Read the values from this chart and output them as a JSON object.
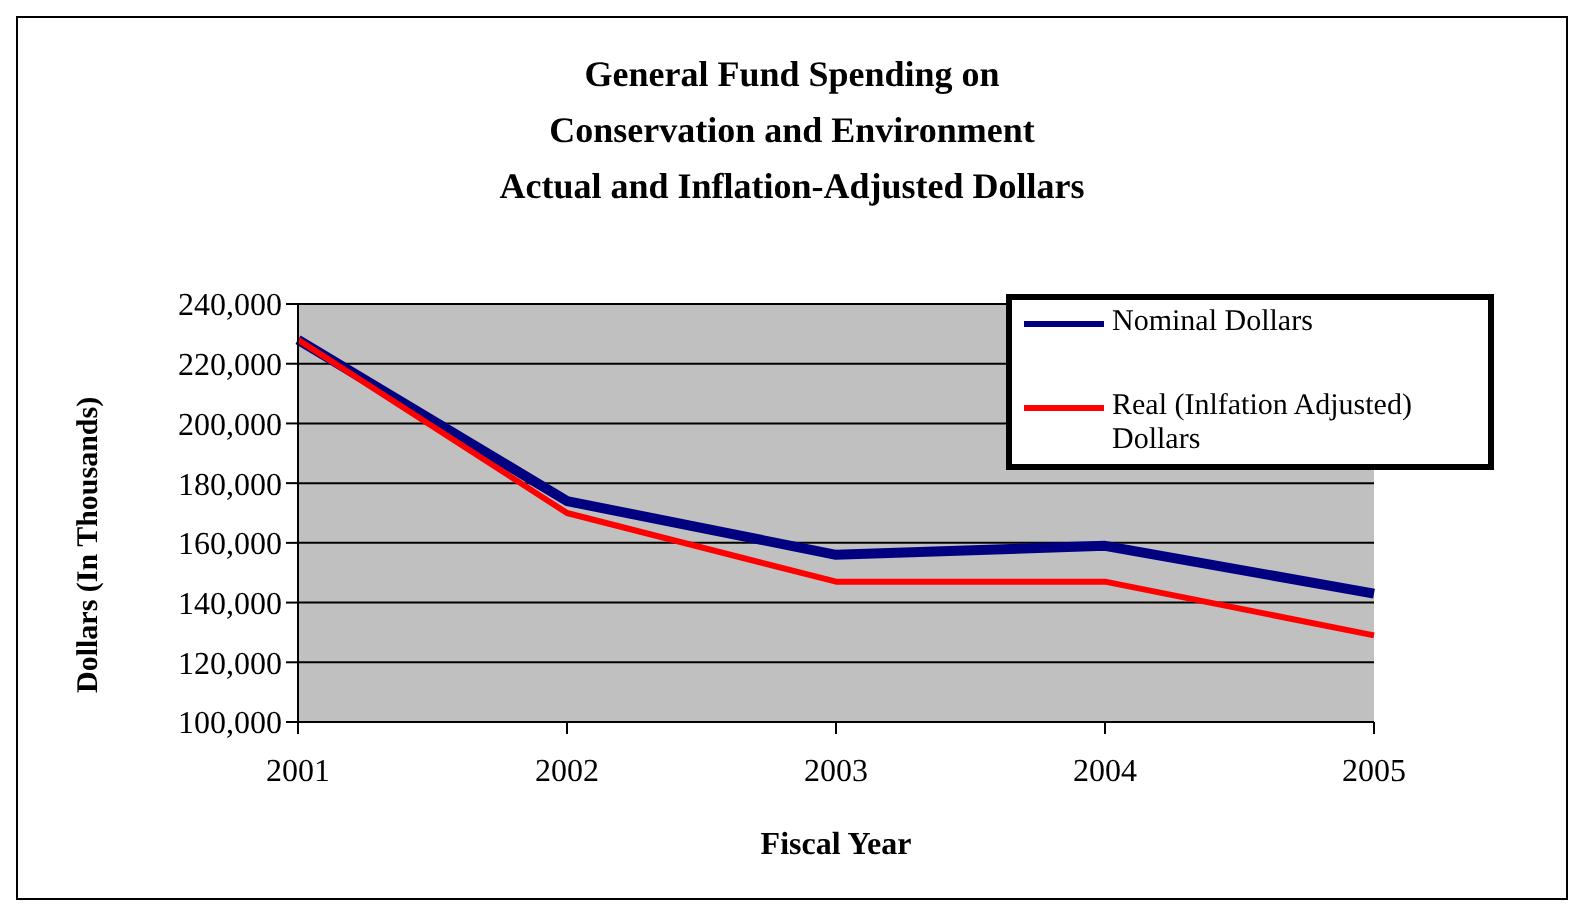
{
  "chart_data": {
    "type": "line",
    "title": "General Fund Spending on\nConservation and Environment\nActual and Inflation-Adjusted Dollars",
    "xlabel": "Fiscal Year",
    "ylabel": "Dollars (In Thousands)",
    "categories": [
      "2001",
      "2002",
      "2003",
      "2004",
      "2005"
    ],
    "series": [
      {
        "name": "Nominal Dollars",
        "color": "#000080",
        "values": [
          228000,
          174000,
          156000,
          159000,
          143000
        ]
      },
      {
        "name": "Real (Inlfation Adjusted) Dollars",
        "color": "#ff0000",
        "values": [
          228000,
          170000,
          147000,
          147000,
          129000
        ]
      }
    ],
    "ylim": [
      100000,
      240000
    ],
    "yticks": [
      {
        "value": 100000,
        "label": "100,000"
      },
      {
        "value": 120000,
        "label": "120,000"
      },
      {
        "value": 140000,
        "label": "140,000"
      },
      {
        "value": 160000,
        "label": "160,000"
      },
      {
        "value": 180000,
        "label": "180,000"
      },
      {
        "value": 200000,
        "label": "200,000"
      },
      {
        "value": 220000,
        "label": "220,000"
      },
      {
        "value": 240000,
        "label": "240,000"
      }
    ],
    "grid": "y",
    "legend": "top right",
    "marker": "none"
  }
}
